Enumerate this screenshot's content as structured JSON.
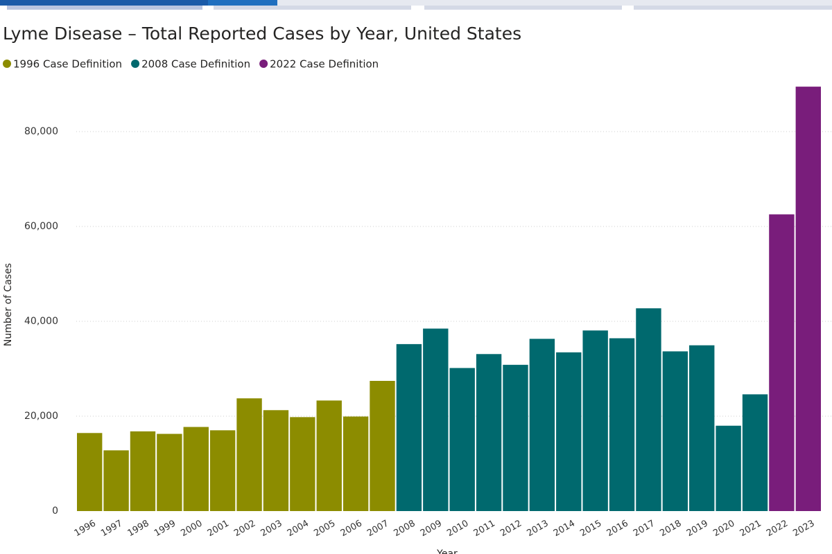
{
  "chart_data": {
    "type": "bar",
    "title": "Lyme Disease – Total Reported Cases by Year, United States",
    "y_label": "Number of Cases",
    "x_label": "Year",
    "categories": [
      "1996",
      "1997",
      "1998",
      "1999",
      "2000",
      "2001",
      "2002",
      "2003",
      "2004",
      "2005",
      "2006",
      "2007",
      "2008",
      "2009",
      "2010",
      "2011",
      "2012",
      "2013",
      "2014",
      "2015",
      "2016",
      "2017",
      "2018",
      "2019",
      "2020",
      "2021",
      "2022",
      "2023"
    ],
    "series": [
      {
        "name": "1996 Case Definition",
        "color": "#8c8c00",
        "values": [
          16455,
          12801,
          16801,
          16273,
          17730,
          17029,
          23763,
          21273,
          19804,
          23305,
          19931,
          27444,
          null,
          null,
          null,
          null,
          null,
          null,
          null,
          null,
          null,
          null,
          null,
          null,
          null,
          null,
          null,
          null
        ]
      },
      {
        "name": "2008 Case Definition",
        "color": "#00696e",
        "values": [
          null,
          null,
          null,
          null,
          null,
          null,
          null,
          null,
          null,
          null,
          null,
          null,
          35198,
          38468,
          30158,
          33097,
          30831,
          36307,
          33461,
          38069,
          36429,
          42743,
          33666,
          34945,
          17993,
          24610,
          null,
          null
        ]
      },
      {
        "name": "2022 Case Definition",
        "color": "#791d7b",
        "values": [
          null,
          null,
          null,
          null,
          null,
          null,
          null,
          null,
          null,
          null,
          null,
          null,
          null,
          null,
          null,
          null,
          null,
          null,
          null,
          null,
          null,
          null,
          null,
          null,
          null,
          null,
          62551,
          89470
        ]
      }
    ],
    "ylim": [
      0,
      90000
    ],
    "yticks": [
      0,
      {
        "value": 20000,
        "label": "20,000"
      },
      {
        "value": 40000,
        "label": "40,000"
      },
      {
        "value": 60000,
        "label": "60,000"
      },
      {
        "value": 80000,
        "label": "80,000"
      }
    ],
    "grid": true,
    "legend": "top-left"
  }
}
